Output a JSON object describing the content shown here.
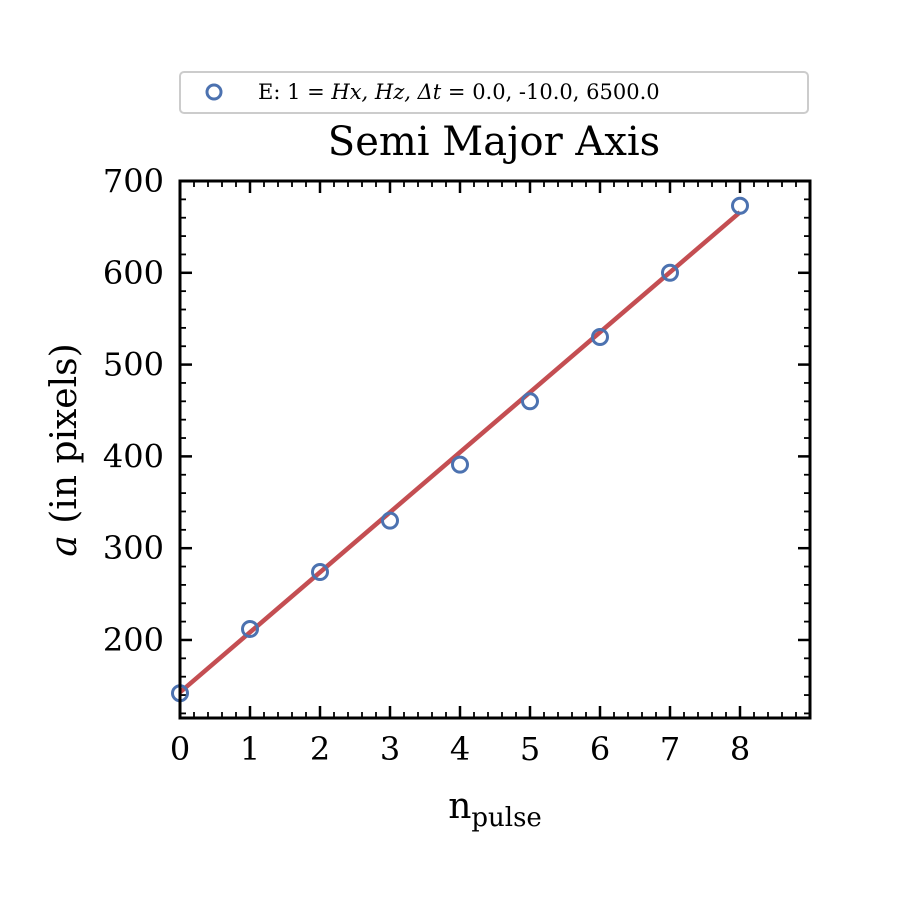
{
  "chart_data": {
    "type": "scatter",
    "title": "Semi Major Axis",
    "xlabel": "n",
    "xlabel_subscript": "pulse",
    "ylabel_symbol": "a",
    "ylabel_rest": " (in pixels)",
    "xlim": [
      0,
      9
    ],
    "ylim": [
      115,
      700
    ],
    "x_ticks": [
      0,
      1,
      2,
      3,
      4,
      5,
      6,
      7,
      8
    ],
    "y_ticks": [
      200,
      300,
      400,
      500,
      600,
      700
    ],
    "grid": false,
    "legend_position": "top",
    "legend": {
      "marker_label": "E: 1 = ",
      "math_label": "Hx, Hz, Δt = ",
      "values_label": " 0.0, -10.0, 6500.0"
    },
    "series": [
      {
        "kind": "points",
        "color": "#4c72b0",
        "x": [
          0,
          1,
          2,
          3,
          4,
          5,
          6,
          7,
          8
        ],
        "y": [
          142,
          212,
          274,
          330,
          391,
          460,
          530,
          600,
          673
        ]
      },
      {
        "kind": "fit-line",
        "color": "#c44e52",
        "x": [
          0,
          8
        ],
        "y": [
          143,
          666
        ]
      }
    ]
  }
}
